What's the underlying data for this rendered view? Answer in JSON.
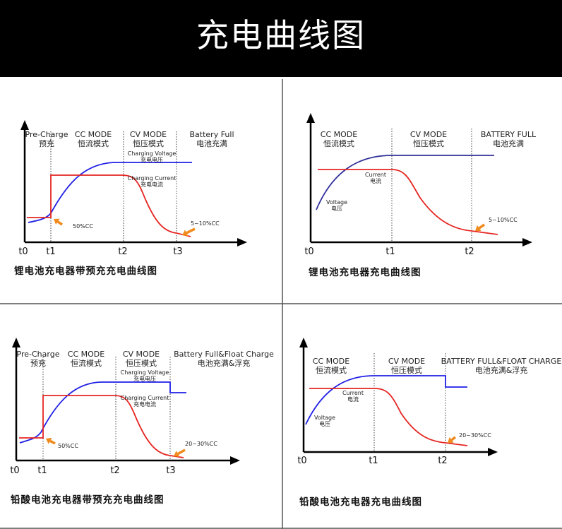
{
  "header": {
    "title": "充电曲线图"
  },
  "colors": {
    "voltage": "#1f1fe6",
    "voltage_alt": "#30309a",
    "current": "#e52521",
    "arrow": "#f08a1c",
    "axis": "#000000"
  },
  "panels": [
    {
      "title": "锂电池充电器带预充充电曲线图",
      "ticks": [
        "t0",
        "t1",
        "t2",
        "t3"
      ],
      "modes": [
        {
          "en": "Pre-Charge",
          "zh": "预充"
        },
        {
          "en": "CC MODE",
          "zh": "恒流模式"
        },
        {
          "en": "CV MODE",
          "zh": "恒压模式"
        },
        {
          "en": "Battery Full",
          "zh": "电池充满"
        }
      ],
      "voltage_label": {
        "en": "Charging Voltage",
        "zh": "充电电压"
      },
      "current_label": {
        "en": "Charging Current",
        "zh": "充电电流"
      },
      "annotations": [
        "50%CC",
        "5~10%CC"
      ]
    },
    {
      "title": "锂电池充电器充电曲线图",
      "ticks": [
        "t0",
        "t1",
        "t2"
      ],
      "modes": [
        {
          "en": "CC MODE",
          "zh": "恒流模式"
        },
        {
          "en": "CV MODE",
          "zh": "恒压模式"
        },
        {
          "en": "BATTERY FULL",
          "zh": "电池充满"
        }
      ],
      "voltage_label": {
        "en": "Voltage",
        "zh": "电压"
      },
      "current_label": {
        "en": "Current",
        "zh": "电流"
      },
      "annotations": [
        "5~10%CC"
      ]
    },
    {
      "title": "铅酸电池充电器带预充充电曲线图",
      "ticks": [
        "t0",
        "t1",
        "t2",
        "t3"
      ],
      "modes": [
        {
          "en": "Pre-Charge",
          "zh": "预充"
        },
        {
          "en": "CC MODE",
          "zh": "恒流模式"
        },
        {
          "en": "CV MODE",
          "zh": "恒压模式"
        },
        {
          "en": "Battery Full&Float Charge",
          "zh": "电池充满&浮充"
        }
      ],
      "voltage_label": {
        "en": "Charging Voltage",
        "zh": "充电电压"
      },
      "current_label": {
        "en": "Charging Current",
        "zh": "充电电流"
      },
      "annotations": [
        "50%CC",
        "20~30%CC"
      ]
    },
    {
      "title": "铅酸电池充电器充电曲线图",
      "ticks": [
        "t0",
        "t1",
        "t2"
      ],
      "modes": [
        {
          "en": "CC MODE",
          "zh": "恒流模式"
        },
        {
          "en": "CV MODE",
          "zh": "恒压模式"
        },
        {
          "en": "BATTERY FULL&FLOAT CHARGE",
          "zh": "电池充满&浮充"
        }
      ],
      "voltage_label": {
        "en": "Voltage",
        "zh": "电压"
      },
      "current_label": {
        "en": "Current",
        "zh": "电流"
      },
      "annotations": [
        "20~30%CC"
      ]
    }
  ]
}
